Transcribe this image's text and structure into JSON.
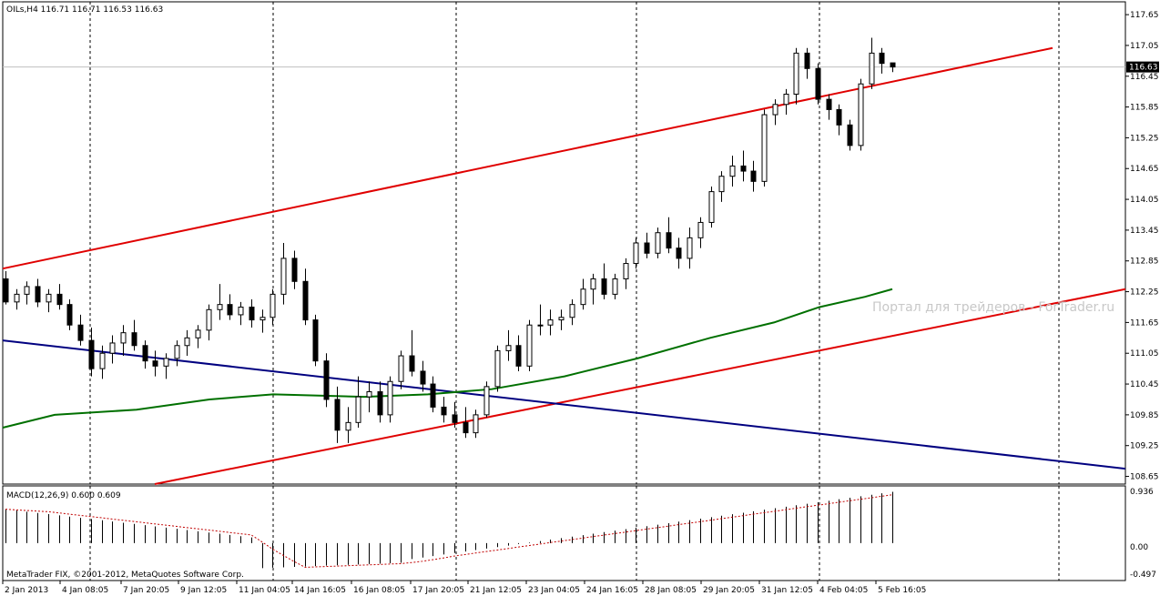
{
  "symbol_header": {
    "symbol": "OILs,H4",
    "open": "116.71",
    "high": "116.71",
    "low": "116.53",
    "close": "116.63"
  },
  "current_price_label": "116.63",
  "watermark": "Портал для трейдеров - ForTrader.ru",
  "copyright": "MetaTrader FIX, ©2001-2012, MetaQuotes Software Corp.",
  "macd": {
    "label": "MACD(12,26,9) 0.600 0.609",
    "axis_labels": [
      "0.936",
      "0.00",
      "-0.497"
    ]
  },
  "price_axis_labels": [
    "117.65",
    "117.05",
    "116.45",
    "115.85",
    "115.25",
    "114.65",
    "114.05",
    "113.45",
    "112.85",
    "112.25",
    "111.65",
    "111.05",
    "110.45",
    "109.85",
    "109.25",
    "108.65"
  ],
  "time_axis_labels": [
    "2 Jan 2013",
    "4 Jan 08:05",
    "7 Jan 20:05",
    "9 Jan 12:05",
    "11 Jan 04:05",
    "14 Jan 16:05",
    "16 Jan 08:05",
    "17 Jan 20:05",
    "21 Jan 12:05",
    "23 Jan 04:05",
    "24 Jan 16:05",
    "28 Jan 08:05",
    "29 Jan 20:05",
    "31 Jan 12:05",
    "4 Feb 04:05",
    "5 Feb 16:05"
  ],
  "colors": {
    "background": "#ffffff",
    "grid": "#000000",
    "candle": "#000000",
    "channel": "#e00000",
    "trend": "#000080",
    "moving_average": "#007000",
    "signal": "#c00000",
    "price_line": "#c0c0c0"
  },
  "chart_data": {
    "type": "candlestick",
    "ylim": [
      108.5,
      117.9
    ],
    "last_price": 116.63,
    "candles": [
      [
        112.5,
        112.65,
        112.0,
        112.05
      ],
      [
        112.05,
        112.3,
        111.9,
        112.2
      ],
      [
        112.2,
        112.45,
        112.0,
        112.35
      ],
      [
        112.35,
        112.5,
        111.95,
        112.05
      ],
      [
        112.05,
        112.3,
        111.85,
        112.2
      ],
      [
        112.2,
        112.4,
        111.9,
        112.0
      ],
      [
        112.0,
        112.1,
        111.5,
        111.6
      ],
      [
        111.6,
        111.8,
        111.2,
        111.3
      ],
      [
        111.3,
        111.55,
        110.6,
        110.75
      ],
      [
        110.75,
        111.2,
        110.55,
        111.05
      ],
      [
        111.05,
        111.4,
        110.85,
        111.25
      ],
      [
        111.25,
        111.6,
        111.0,
        111.45
      ],
      [
        111.45,
        111.7,
        111.1,
        111.2
      ],
      [
        111.2,
        111.3,
        110.75,
        110.9
      ],
      [
        110.9,
        111.1,
        110.6,
        110.8
      ],
      [
        110.8,
        111.05,
        110.55,
        110.95
      ],
      [
        110.95,
        111.3,
        110.8,
        111.2
      ],
      [
        111.2,
        111.5,
        111.0,
        111.35
      ],
      [
        111.35,
        111.6,
        111.15,
        111.5
      ],
      [
        111.5,
        112.0,
        111.3,
        111.9
      ],
      [
        111.9,
        112.4,
        111.7,
        112.0
      ],
      [
        112.0,
        112.2,
        111.7,
        111.8
      ],
      [
        111.8,
        112.05,
        111.6,
        111.95
      ],
      [
        111.95,
        112.1,
        111.55,
        111.7
      ],
      [
        111.7,
        111.9,
        111.45,
        111.75
      ],
      [
        111.75,
        112.3,
        111.6,
        112.2
      ],
      [
        112.2,
        113.2,
        112.0,
        112.9
      ],
      [
        112.9,
        113.05,
        112.3,
        112.45
      ],
      [
        112.45,
        112.7,
        111.6,
        111.7
      ],
      [
        111.7,
        111.8,
        110.8,
        110.9
      ],
      [
        110.9,
        111.05,
        110.0,
        110.15
      ],
      [
        110.15,
        110.4,
        109.3,
        109.55
      ],
      [
        109.55,
        110.0,
        109.3,
        109.7
      ],
      [
        109.7,
        110.6,
        109.6,
        110.2
      ],
      [
        110.2,
        110.5,
        109.9,
        110.3
      ],
      [
        110.3,
        110.5,
        109.7,
        109.85
      ],
      [
        109.85,
        110.6,
        109.7,
        110.5
      ],
      [
        110.5,
        111.1,
        110.35,
        111.0
      ],
      [
        111.0,
        111.5,
        110.6,
        110.7
      ],
      [
        110.7,
        110.9,
        110.3,
        110.45
      ],
      [
        110.45,
        110.6,
        109.9,
        110.0
      ],
      [
        110.0,
        110.2,
        109.7,
        109.85
      ],
      [
        109.85,
        110.1,
        109.6,
        109.7
      ],
      [
        109.7,
        110.0,
        109.4,
        109.5
      ],
      [
        109.5,
        109.95,
        109.4,
        109.85
      ],
      [
        109.85,
        110.5,
        109.8,
        110.4
      ],
      [
        110.4,
        111.2,
        110.3,
        111.1
      ],
      [
        111.1,
        111.5,
        110.9,
        111.2
      ],
      [
        111.2,
        111.4,
        110.7,
        110.8
      ],
      [
        110.8,
        111.7,
        110.7,
        111.6
      ],
      [
        111.6,
        112.0,
        111.4,
        111.6
      ],
      [
        111.6,
        111.9,
        111.4,
        111.7
      ],
      [
        111.7,
        111.9,
        111.5,
        111.75
      ],
      [
        111.75,
        112.1,
        111.6,
        112.0
      ],
      [
        112.0,
        112.5,
        111.9,
        112.3
      ],
      [
        112.3,
        112.6,
        112.0,
        112.5
      ],
      [
        112.5,
        112.8,
        112.1,
        112.2
      ],
      [
        112.2,
        112.6,
        112.1,
        112.5
      ],
      [
        112.5,
        112.9,
        112.3,
        112.8
      ],
      [
        112.8,
        113.3,
        112.7,
        113.2
      ],
      [
        113.2,
        113.4,
        112.9,
        113.0
      ],
      [
        113.0,
        113.5,
        112.9,
        113.4
      ],
      [
        113.4,
        113.7,
        113.0,
        113.1
      ],
      [
        113.1,
        113.3,
        112.7,
        112.9
      ],
      [
        112.9,
        113.5,
        112.7,
        113.3
      ],
      [
        113.3,
        113.7,
        113.1,
        113.6
      ],
      [
        113.6,
        114.3,
        113.5,
        114.2
      ],
      [
        114.2,
        114.6,
        114.0,
        114.5
      ],
      [
        114.5,
        114.9,
        114.3,
        114.7
      ],
      [
        114.7,
        115.0,
        114.4,
        114.6
      ],
      [
        114.6,
        114.8,
        114.2,
        114.4
      ],
      [
        114.4,
        115.8,
        114.3,
        115.7
      ],
      [
        115.7,
        116.0,
        115.5,
        115.9
      ],
      [
        115.9,
        116.2,
        115.7,
        116.1
      ],
      [
        116.1,
        117.0,
        115.9,
        116.9
      ],
      [
        116.9,
        117.0,
        116.4,
        116.6
      ],
      [
        116.6,
        116.7,
        115.9,
        116.0
      ],
      [
        116.0,
        116.1,
        115.6,
        115.8
      ],
      [
        115.8,
        115.9,
        115.3,
        115.5
      ],
      [
        115.5,
        115.6,
        115.0,
        115.1
      ],
      [
        115.1,
        116.4,
        115.0,
        116.3
      ],
      [
        116.3,
        117.2,
        116.2,
        116.9
      ],
      [
        116.9,
        117.0,
        116.5,
        116.7
      ],
      [
        116.71,
        116.71,
        116.53,
        116.63
      ]
    ],
    "macd_ylim": [
      -0.6,
      0.95
    ]
  }
}
